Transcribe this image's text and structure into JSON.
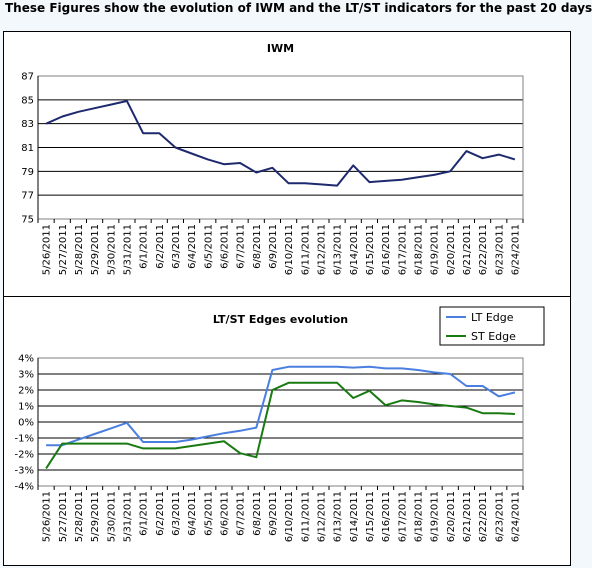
{
  "page_title": "These Figures show the evolution of IWM and the LT/ST indicators for the past 20 days",
  "colors": {
    "iwm_line": "#1f2a6e",
    "lt_edge": "#4a7fe0",
    "st_edge": "#1a7a12",
    "background": "#f3f8fc"
  },
  "chart_data": [
    {
      "type": "line",
      "title": "IWM",
      "xlabel": "",
      "ylabel": "",
      "ylim": [
        75,
        87
      ],
      "yticks": [
        "87",
        "85",
        "83",
        "81",
        "79",
        "77",
        "75"
      ],
      "grid": true,
      "categories": [
        "5/26/2011",
        "5/27/2011",
        "5/28/2011",
        "5/29/2011",
        "5/30/2011",
        "5/31/2011",
        "6/1/2011",
        "6/2/2011",
        "6/3/2011",
        "6/4/2011",
        "6/5/2011",
        "6/6/2011",
        "6/7/2011",
        "6/8/2011",
        "6/9/2011",
        "6/10/2011",
        "6/11/2011",
        "6/12/2011",
        "6/13/2011",
        "6/14/2011",
        "6/15/2011",
        "6/16/2011",
        "6/17/2011",
        "6/18/2011",
        "6/19/2011",
        "6/20/2011",
        "6/21/2011",
        "6/22/2011",
        "6/23/2011",
        "6/24/2011"
      ],
      "series": [
        {
          "values": [
            83.0,
            83.6,
            84.0,
            84.3,
            84.6,
            84.9,
            82.2,
            82.2,
            81.0,
            80.5,
            80.0,
            79.6,
            79.7,
            78.9,
            79.3,
            78.0,
            78.0,
            77.9,
            77.8,
            79.5,
            78.1,
            78.2,
            78.3,
            78.5,
            78.7,
            79.0,
            80.7,
            80.1,
            80.4,
            80.0
          ]
        }
      ]
    },
    {
      "type": "line",
      "title": "LT/ST Edges evolution",
      "xlabel": "",
      "ylabel": "",
      "ylim": [
        -4,
        4
      ],
      "yticks": [
        "4%",
        "3%",
        "2%",
        "1%",
        "0%",
        "-1%",
        "-2%",
        "-3%",
        "-4%"
      ],
      "grid": true,
      "legend": "top-right",
      "categories": [
        "5/26/2011",
        "5/27/2011",
        "5/28/2011",
        "5/29/2011",
        "5/30/2011",
        "5/31/2011",
        "6/1/2011",
        "6/2/2011",
        "6/3/2011",
        "6/4/2011",
        "6/5/2011",
        "6/6/2011",
        "6/7/2011",
        "6/8/2011",
        "6/9/2011",
        "6/10/2011",
        "6/11/2011",
        "6/12/2011",
        "6/13/2011",
        "6/14/2011",
        "6/15/2011",
        "6/16/2011",
        "6/17/2011",
        "6/18/2011",
        "6/19/2011",
        "6/20/2011",
        "6/21/2011",
        "6/22/2011",
        "6/23/2011",
        "6/24/2011"
      ],
      "series": [
        {
          "name": "LT Edge",
          "values": [
            -1.45,
            -1.45,
            -1.1,
            -0.75,
            -0.4,
            -0.05,
            -1.25,
            -1.25,
            -1.25,
            -1.1,
            -0.9,
            -0.7,
            -0.55,
            -0.35,
            3.25,
            3.45,
            3.45,
            3.45,
            3.45,
            3.4,
            3.45,
            3.35,
            3.35,
            3.25,
            3.1,
            3.0,
            2.25,
            2.25,
            1.6,
            1.85
          ]
        },
        {
          "name": "ST Edge",
          "values": [
            -2.9,
            -1.35,
            -1.35,
            -1.35,
            -1.35,
            -1.35,
            -1.65,
            -1.65,
            -1.65,
            -1.5,
            -1.35,
            -1.2,
            -1.95,
            -2.2,
            2.0,
            2.45,
            2.45,
            2.45,
            2.45,
            1.5,
            1.95,
            1.05,
            1.35,
            1.25,
            1.1,
            1.0,
            0.9,
            0.55,
            0.55,
            0.5
          ]
        }
      ]
    }
  ]
}
